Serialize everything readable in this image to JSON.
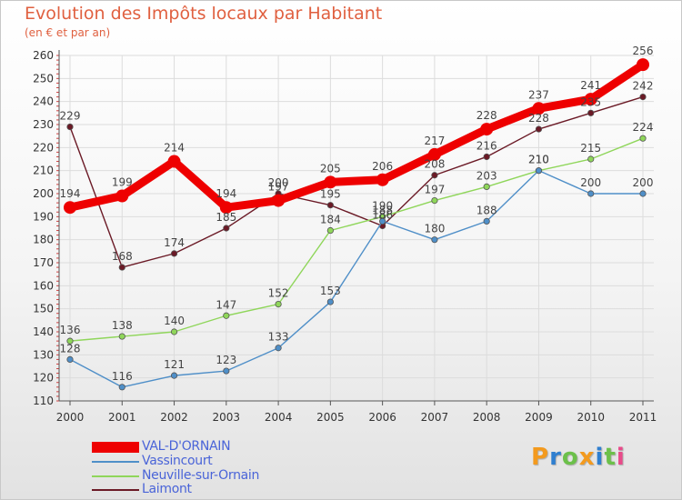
{
  "header": {
    "title": "Evolution des Impôts locaux par Habitant",
    "subtitle": "(en € et par an)"
  },
  "colors": {
    "title": "#e06040",
    "axis_labels": "#333333",
    "grid": "#dcdcdc",
    "legend_text": "#4a64d8"
  },
  "chart_data": {
    "type": "line",
    "x": [
      "2000",
      "2001",
      "2002",
      "2003",
      "2004",
      "2005",
      "2006",
      "2007",
      "2008",
      "2009",
      "2010",
      "2011"
    ],
    "ylim": [
      110,
      260
    ],
    "yticks": [
      110,
      120,
      130,
      140,
      150,
      160,
      170,
      180,
      190,
      200,
      210,
      220,
      230,
      240,
      250,
      260
    ],
    "grid": true,
    "legend_position": "bottom-left",
    "series": [
      {
        "name": "Laimont",
        "color": "#6b1a26",
        "weight": "thin",
        "values": [
          229,
          168,
          174,
          185,
          200,
          195,
          186,
          208,
          216,
          228,
          235,
          242
        ],
        "labels": [
          "229",
          "168",
          "174",
          "185",
          "200",
          "195",
          "186",
          "208",
          "216",
          "228",
          "235",
          "242"
        ]
      },
      {
        "name": "Neuville-sur-Ornain",
        "color": "#8fd65a",
        "weight": "thin",
        "values": [
          136,
          138,
          140,
          147,
          152,
          184,
          190,
          197,
          203,
          210,
          215,
          224
        ],
        "labels": [
          "136",
          "138",
          "140",
          "147",
          "152",
          "184",
          "190",
          "197",
          "203",
          "210",
          "215",
          "224"
        ]
      },
      {
        "name": "Vassincourt",
        "color": "#4f8fc8",
        "weight": "thin",
        "values": [
          128,
          116,
          121,
          123,
          133,
          153,
          188,
          180,
          188,
          210,
          200,
          200
        ],
        "labels": [
          "128",
          "116",
          "121",
          "123",
          "133",
          "153",
          "188",
          "180",
          "188",
          "210",
          "200",
          "200"
        ]
      },
      {
        "name": "VAL-D'ORNAIN",
        "color": "#ee0000",
        "weight": "thick",
        "values": [
          194,
          199,
          214,
          194,
          197,
          205,
          206,
          217,
          228,
          237,
          241,
          256
        ],
        "labels": [
          "194",
          "199",
          "214",
          "194",
          "197",
          "205",
          "206",
          "217",
          "228",
          "237",
          "241",
          "256"
        ]
      }
    ]
  },
  "legend": {
    "items": [
      {
        "label": "VAL-D'ORNAIN",
        "color": "#ee0000",
        "weight": "thick"
      },
      {
        "label": "Vassincourt",
        "color": "#4f8fc8",
        "weight": "thin"
      },
      {
        "label": "Neuville-sur-Ornain",
        "color": "#8fd65a",
        "weight": "thin"
      },
      {
        "label": "Laimont",
        "color": "#6b1a26",
        "weight": "thin"
      }
    ]
  },
  "logo": {
    "letters": [
      "P",
      "r",
      "o",
      "x",
      "i",
      "t",
      "i"
    ],
    "colors": [
      "#f39a1e",
      "#2f7fd0",
      "#6cc04a",
      "#f39a1e",
      "#2f7fd0",
      "#6cc04a",
      "#e84b8a"
    ]
  }
}
